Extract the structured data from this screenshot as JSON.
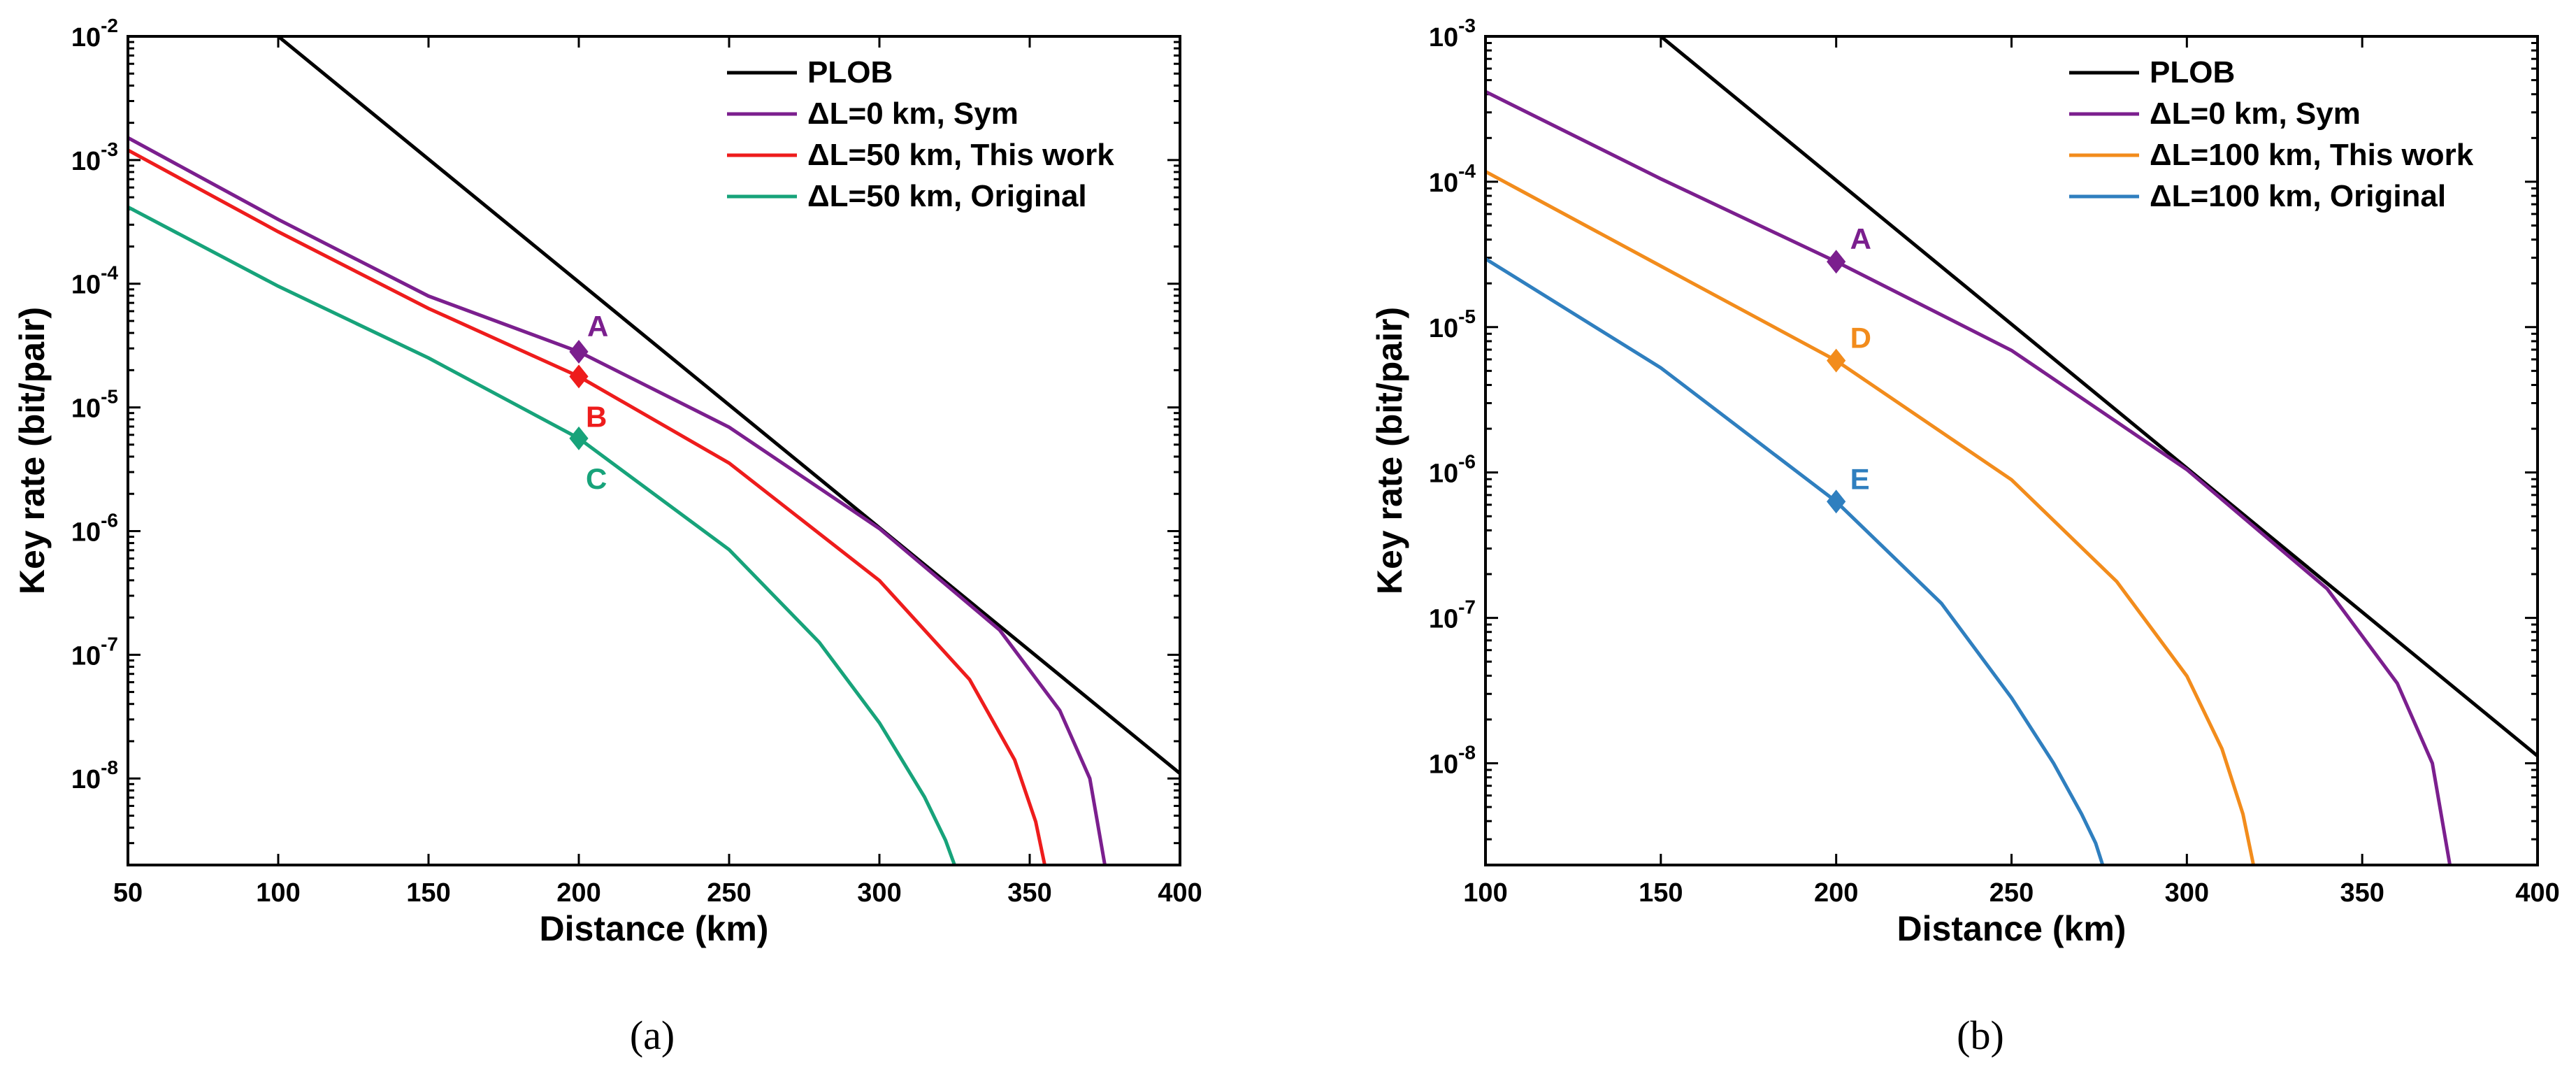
{
  "chart_data": [
    {
      "type": "line",
      "panel_label": "(a)",
      "xlabel": "Distance (km)",
      "ylabel": "Key rate (bit/pair)",
      "xlim": [
        50,
        400
      ],
      "ylim_log10": [
        -8.7,
        -2
      ],
      "xticks": [
        50,
        100,
        150,
        200,
        250,
        300,
        350,
        400
      ],
      "yticks": [
        {
          "base": "10",
          "exp": "-2",
          "value": -2
        },
        {
          "base": "10",
          "exp": "-3",
          "value": -3
        },
        {
          "base": "10",
          "exp": "-4",
          "value": -4
        },
        {
          "base": "10",
          "exp": "-5",
          "value": -5
        },
        {
          "base": "10",
          "exp": "-6",
          "value": -6
        },
        {
          "base": "10",
          "exp": "-7",
          "value": -7
        },
        {
          "base": "10",
          "exp": "-8",
          "value": -8
        }
      ],
      "legend_position": "top-right",
      "series": [
        {
          "name": "PLOB",
          "color": "#000000",
          "x": [
            100,
            400
          ],
          "log10_y": [
            -2.0,
            -7.96
          ]
        },
        {
          "name": "ΔL=0 km, Sym",
          "color": "#7b1f8e",
          "x": [
            50,
            100,
            150,
            200,
            250,
            300,
            340,
            360,
            370,
            375
          ],
          "log10_y": [
            -2.82,
            -3.48,
            -4.1,
            -4.55,
            -5.16,
            -5.98,
            -6.8,
            -7.45,
            -8.0,
            -8.7
          ]
        },
        {
          "name": "ΔL=50 km, This work",
          "color": "#ee1c1c",
          "x": [
            50,
            100,
            150,
            200,
            250,
            300,
            330,
            345,
            352,
            355
          ],
          "log10_y": [
            -2.92,
            -3.58,
            -4.2,
            -4.75,
            -5.45,
            -6.4,
            -7.2,
            -7.85,
            -8.35,
            -8.7
          ]
        },
        {
          "name": "ΔL=50 km, Original",
          "color": "#17a37a",
          "x": [
            50,
            100,
            150,
            200,
            250,
            280,
            300,
            315,
            322,
            325
          ],
          "log10_y": [
            -3.38,
            -4.02,
            -4.6,
            -5.25,
            -6.15,
            -6.9,
            -7.55,
            -8.15,
            -8.5,
            -8.7
          ]
        }
      ],
      "markers": [
        {
          "label": "A",
          "x": 200,
          "log10_y": -4.55,
          "color": "#7b1f8e",
          "label_pos": "above"
        },
        {
          "label": "B",
          "x": 200,
          "log10_y": -4.75,
          "color": "#ee1c1c",
          "label_pos": "below"
        },
        {
          "label": "C",
          "x": 200,
          "log10_y": -5.25,
          "color": "#17a37a",
          "label_pos": "below"
        }
      ]
    },
    {
      "type": "line",
      "panel_label": "(b)",
      "xlabel": "Distance (km)",
      "ylabel": "Key rate (bit/pair)",
      "xlim": [
        100,
        400
      ],
      "ylim_log10": [
        -8.7,
        -3
      ],
      "xticks": [
        100,
        150,
        200,
        250,
        300,
        350,
        400
      ],
      "yticks": [
        {
          "base": "10",
          "exp": "-3",
          "value": -3
        },
        {
          "base": "10",
          "exp": "-4",
          "value": -4
        },
        {
          "base": "10",
          "exp": "-5",
          "value": -5
        },
        {
          "base": "10",
          "exp": "-6",
          "value": -6
        },
        {
          "base": "10",
          "exp": "-7",
          "value": -7
        },
        {
          "base": "10",
          "exp": "-8",
          "value": -8
        }
      ],
      "legend_position": "top-right",
      "series": [
        {
          "name": "PLOB",
          "color": "#000000",
          "x": [
            150,
            400
          ],
          "log10_y": [
            -3.0,
            -7.95
          ]
        },
        {
          "name": "ΔL=0 km, Sym",
          "color": "#7b1f8e",
          "x": [
            100,
            150,
            200,
            250,
            300,
            340,
            360,
            370,
            375
          ],
          "log10_y": [
            -3.38,
            -3.98,
            -4.55,
            -5.16,
            -5.98,
            -6.8,
            -7.45,
            -8.0,
            -8.7
          ]
        },
        {
          "name": "ΔL=100 km, This work",
          "color": "#f28c1c",
          "x": [
            100,
            150,
            200,
            250,
            280,
            300,
            310,
            316,
            319
          ],
          "log10_y": [
            -3.93,
            -4.58,
            -5.23,
            -6.05,
            -6.75,
            -7.4,
            -7.9,
            -8.35,
            -8.7
          ]
        },
        {
          "name": "ΔL=100 km, Original",
          "color": "#2f7fbf",
          "x": [
            100,
            150,
            200,
            230,
            250,
            262,
            270,
            274,
            276
          ],
          "log10_y": [
            -4.53,
            -5.28,
            -6.2,
            -6.9,
            -7.55,
            -8.0,
            -8.35,
            -8.55,
            -8.7
          ]
        }
      ],
      "markers": [
        {
          "label": "A",
          "x": 200,
          "log10_y": -4.55,
          "color": "#7b1f8e",
          "label_pos": "above-right"
        },
        {
          "label": "D",
          "x": 200,
          "log10_y": -5.23,
          "color": "#f28c1c",
          "label_pos": "above-right"
        },
        {
          "label": "E",
          "x": 200,
          "log10_y": -6.2,
          "color": "#2f7fbf",
          "label_pos": "above-right"
        }
      ]
    }
  ]
}
